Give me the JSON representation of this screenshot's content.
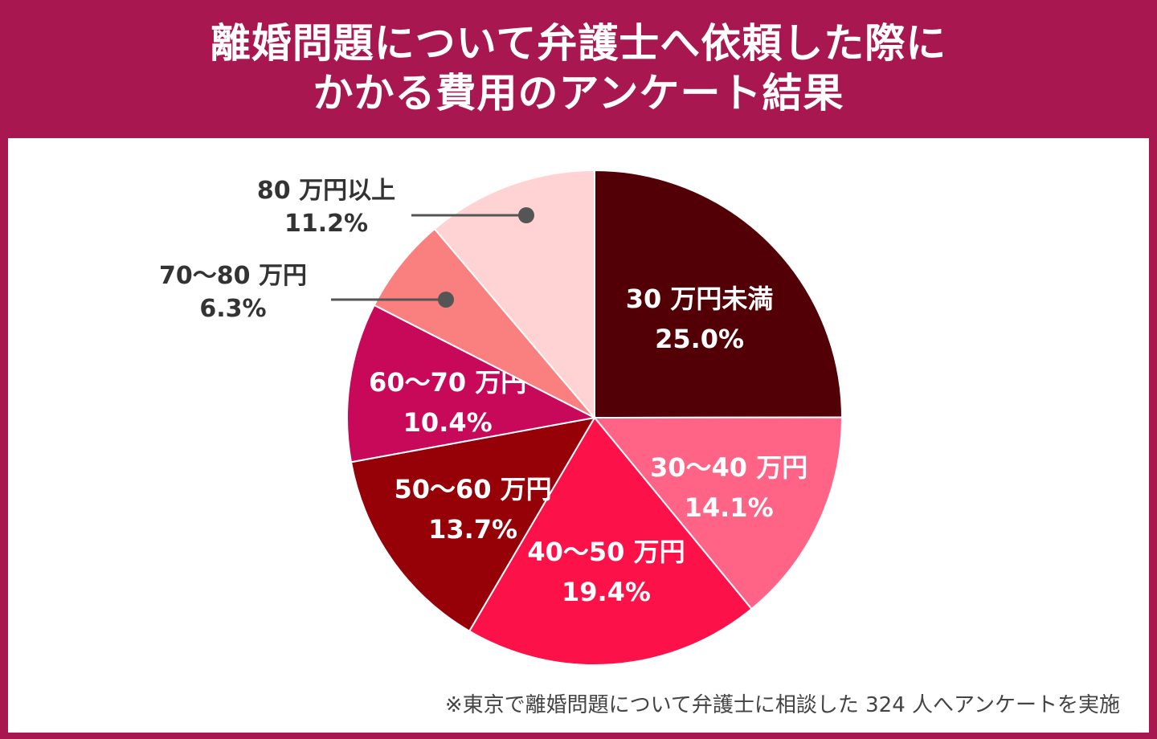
{
  "header": {
    "title_line1": "離婚問題について弁護士へ依頼した際に",
    "title_line2": "かかる費用のアンケート結果"
  },
  "footnote": "※東京で離婚問題について弁護士に相談した 324 人へアンケートを実施",
  "chart_data": {
    "type": "pie",
    "title": "離婚問題について弁護士へ依頼した際にかかる費用のアンケート結果",
    "unit": "%",
    "slices": [
      {
        "category": "30 万円未満",
        "value": 25.0,
        "label": "25.0%",
        "color": "#520006",
        "text_color": "#ffffff",
        "label_mode": "inside"
      },
      {
        "category": "30〜40 万円",
        "value": 14.1,
        "label": "14.1%",
        "color": "#ff6385",
        "text_color": "#ffffff",
        "label_mode": "inside"
      },
      {
        "category": "40〜50 万円",
        "value": 19.4,
        "label": "19.4%",
        "color": "#fc1148",
        "text_color": "#ffffff",
        "label_mode": "inside"
      },
      {
        "category": "50〜60 万円",
        "value": 13.7,
        "label": "13.7%",
        "color": "#960007",
        "text_color": "#ffffff",
        "label_mode": "inside"
      },
      {
        "category": "60〜70 万円",
        "value": 10.4,
        "label": "10.4%",
        "color": "#c8095a",
        "text_color": "#ffffff",
        "label_mode": "inside"
      },
      {
        "category": "70〜80 万円",
        "value": 6.3,
        "label": "6.3%",
        "color": "#fa8080",
        "text_color": "#333333",
        "label_mode": "callout"
      },
      {
        "category": "80 万円以上",
        "value": 11.2,
        "label": "11.2%",
        "color": "#ffd2d4",
        "text_color": "#333333",
        "label_mode": "callout"
      }
    ],
    "start_angle_deg": 0,
    "direction": "clockwise"
  }
}
